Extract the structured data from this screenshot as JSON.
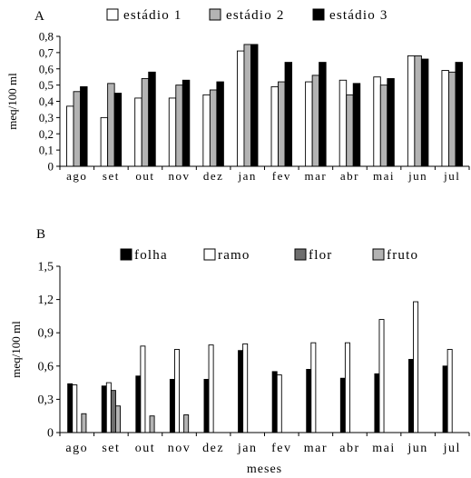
{
  "chart_data": [
    {
      "type": "bar",
      "panel_label": "A",
      "categories": [
        "ago",
        "set",
        "out",
        "nov",
        "dez",
        "jan",
        "fev",
        "mar",
        "abr",
        "mai",
        "jun",
        "jul"
      ],
      "series": [
        {
          "name": "estádio 1",
          "color": "#ffffff",
          "values": [
            0.37,
            0.3,
            0.42,
            0.42,
            0.44,
            0.71,
            0.49,
            0.52,
            0.53,
            0.55,
            0.68,
            0.59
          ]
        },
        {
          "name": "estádio 2",
          "color": "#b3b3b3",
          "values": [
            0.46,
            0.51,
            0.54,
            0.5,
            0.47,
            0.75,
            0.52,
            0.56,
            0.44,
            0.5,
            0.68,
            0.58
          ]
        },
        {
          "name": "estádio 3",
          "color": "#000000",
          "values": [
            0.49,
            0.45,
            0.58,
            0.53,
            0.52,
            0.75,
            0.64,
            0.64,
            0.51,
            0.54,
            0.66,
            0.64
          ]
        }
      ],
      "ylabel": "meq/100 ml",
      "xlabel": "",
      "ylim": [
        0,
        0.8
      ],
      "yticks": [
        "0",
        "0,1",
        "0,2",
        "0,3",
        "0,4",
        "0,5",
        "0,6",
        "0,7",
        "0,8"
      ],
      "ytick_values": [
        0,
        0.1,
        0.2,
        0.3,
        0.4,
        0.5,
        0.6,
        0.7,
        0.8
      ],
      "grid": false,
      "legend_position": "top"
    },
    {
      "type": "bar",
      "panel_label": "B",
      "categories": [
        "ago",
        "set",
        "out",
        "nov",
        "dez",
        "jan",
        "fev",
        "mar",
        "abr",
        "mai",
        "jun",
        "jul"
      ],
      "series": [
        {
          "name": "folha",
          "color": "#000000",
          "values": [
            0.44,
            0.42,
            0.51,
            0.48,
            0.48,
            0.74,
            0.55,
            0.57,
            0.49,
            0.53,
            0.66,
            0.6
          ]
        },
        {
          "name": "ramo",
          "color": "#ffffff",
          "values": [
            0.43,
            0.45,
            0.78,
            0.75,
            0.79,
            0.8,
            0.52,
            0.81,
            0.81,
            1.02,
            1.18,
            0.75
          ]
        },
        {
          "name": "flor",
          "color": "#6e6e6e",
          "values": [
            0,
            0.38,
            0,
            0,
            0,
            0,
            0,
            0,
            0,
            0,
            0,
            0
          ]
        },
        {
          "name": "fruto",
          "color": "#b3b3b3",
          "values": [
            0.17,
            0.24,
            0.15,
            0.16,
            0,
            0,
            0,
            0,
            0,
            0,
            0,
            0
          ]
        }
      ],
      "ylabel": "meq/100 ml",
      "xlabel": "meses",
      "ylim": [
        0,
        1.5
      ],
      "yticks": [
        "0",
        "0,3",
        "0,6",
        "0,9",
        "1,2",
        "1,5"
      ],
      "ytick_values": [
        0,
        0.3,
        0.6,
        0.9,
        1.2,
        1.5
      ],
      "grid": false,
      "legend_position": "top"
    }
  ]
}
